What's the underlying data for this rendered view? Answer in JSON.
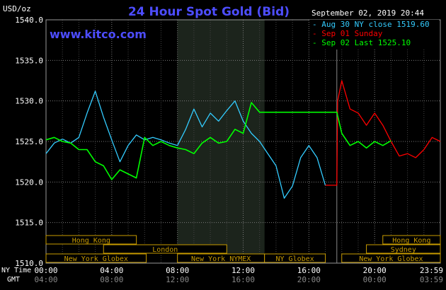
{
  "chart_data": {
    "type": "line",
    "title": "24 Hour Spot Gold (Bid)",
    "ylabel": "USD/oz",
    "watermark": "www.kitco.com",
    "timestamp": "September 02, 2019 20:44",
    "ylim": [
      1510,
      1540
    ],
    "xlim": [
      0,
      24
    ],
    "yticks": [
      {
        "value": 1540,
        "label": "1540.0"
      },
      {
        "value": 1535,
        "label": "1535.0"
      },
      {
        "value": 1530,
        "label": "1530.0"
      },
      {
        "value": 1525,
        "label": "1525.0"
      },
      {
        "value": 1520,
        "label": "1520.0"
      },
      {
        "value": 1515,
        "label": "1515.0"
      },
      {
        "value": 1510,
        "label": "1510.0"
      }
    ],
    "time_axes": {
      "ny_label": "NY Time",
      "gmt_label": "GMT",
      "ny_ticks": [
        {
          "x": 0,
          "label": "00:00"
        },
        {
          "x": 4,
          "label": "04:00"
        },
        {
          "x": 8,
          "label": "08:00"
        },
        {
          "x": 12,
          "label": "12:00"
        },
        {
          "x": 16,
          "label": "16:00"
        },
        {
          "x": 20,
          "label": "20:00"
        },
        {
          "x": 24,
          "label": "23:59"
        }
      ],
      "gmt_ticks": [
        {
          "x": 0,
          "label": "04:00"
        },
        {
          "x": 4,
          "label": "08:00"
        },
        {
          "x": 8,
          "label": "12:00"
        },
        {
          "x": 12,
          "label": "16:00"
        },
        {
          "x": 16,
          "label": "20:00"
        },
        {
          "x": 20,
          "label": "00:00"
        },
        {
          "x": 24,
          "label": "03:59"
        }
      ]
    },
    "shaded_region": [
      8,
      13.3
    ],
    "divider_x": 17.7,
    "legend": [
      {
        "label": "Aug 30 NY close 1519.60",
        "color": "#33ccff"
      },
      {
        "label": "Sep 01 Sunday",
        "color": "#ff0000"
      },
      {
        "label": "Sep 02 Last 1525.10",
        "color": "#00ff00"
      }
    ],
    "series": [
      {
        "name": "Aug 30 NY close 1519.60",
        "color": "#33ccff",
        "x": [
          0,
          0.5,
          1,
          1.5,
          2,
          2.5,
          3,
          3.5,
          4,
          4.5,
          5,
          5.5,
          6,
          6.5,
          7,
          7.5,
          8,
          8.5,
          9,
          9.5,
          10,
          10.5,
          11,
          11.5,
          12,
          12.5,
          13,
          13.5,
          14,
          14.5,
          15,
          15.5,
          16,
          16.5,
          17
        ],
        "y": [
          1523.5,
          1524.8,
          1525.3,
          1524.8,
          1525.5,
          1528.5,
          1531.2,
          1528.0,
          1525.2,
          1522.5,
          1524.5,
          1525.8,
          1525.2,
          1525.5,
          1525.2,
          1524.8,
          1524.5,
          1526.5,
          1529.0,
          1526.8,
          1528.5,
          1527.5,
          1528.8,
          1530.0,
          1527.5,
          1526.0,
          1525.0,
          1523.5,
          1522.0,
          1518.0,
          1519.5,
          1523.0,
          1524.5,
          1523.0,
          1519.6
        ]
      },
      {
        "name": "Sep 01 Sunday",
        "color": "#ff0000",
        "x": [
          17,
          17.7,
          17.75,
          18,
          18.5,
          19,
          19.5,
          20,
          20.5,
          21,
          21.5,
          22,
          22.5,
          23,
          23.5,
          24
        ],
        "y": [
          1519.6,
          1519.6,
          1530.0,
          1532.5,
          1529.0,
          1528.5,
          1527.0,
          1528.5,
          1527.0,
          1525.0,
          1523.2,
          1523.5,
          1523.0,
          1524.0,
          1525.5,
          1525.0
        ]
      },
      {
        "name": "Sep 02 Last 1525.10",
        "color": "#00ff00",
        "x": [
          0,
          0.5,
          1,
          1.5,
          2,
          2.5,
          3,
          3.5,
          4,
          4.5,
          5,
          5.5,
          6,
          6.5,
          7,
          7.5,
          8,
          8.5,
          9,
          9.5,
          10,
          10.5,
          11,
          11.5,
          12,
          12.5,
          13,
          13.5,
          14,
          15,
          16,
          17,
          17.7,
          18,
          18.5,
          19,
          19.5,
          20,
          20.5,
          21
        ],
        "y": [
          1525.2,
          1525.5,
          1525.0,
          1524.8,
          1524.0,
          1524.0,
          1522.5,
          1522.0,
          1520.3,
          1521.5,
          1521.0,
          1520.5,
          1525.5,
          1524.5,
          1525.0,
          1524.5,
          1524.2,
          1524.0,
          1523.5,
          1524.8,
          1525.5,
          1524.8,
          1525.0,
          1526.5,
          1526.0,
          1529.8,
          1528.6,
          1528.6,
          1528.6,
          1528.6,
          1528.6,
          1528.6,
          1528.6,
          1526.0,
          1524.5,
          1525.0,
          1524.2,
          1525.0,
          1524.5,
          1525.1
        ]
      }
    ]
  },
  "sessions": [
    {
      "label": "Hong Kong",
      "start": 0,
      "end": 5.5
    },
    {
      "label": "London",
      "start": 3.5,
      "end": 11
    },
    {
      "label": "New York Globex",
      "start": 0,
      "end": 6.1
    },
    {
      "label": "New York NYMEX",
      "start": 8,
      "end": 13.3
    },
    {
      "label": "NY Globex",
      "start": 13.3,
      "end": 17
    },
    {
      "label": "Hong Kong",
      "start": 20.5,
      "end": 24
    },
    {
      "label": "Sydney",
      "start": 19.5,
      "end": 24
    },
    {
      "label": "New York Globex",
      "start": 18,
      "end": 24
    }
  ]
}
